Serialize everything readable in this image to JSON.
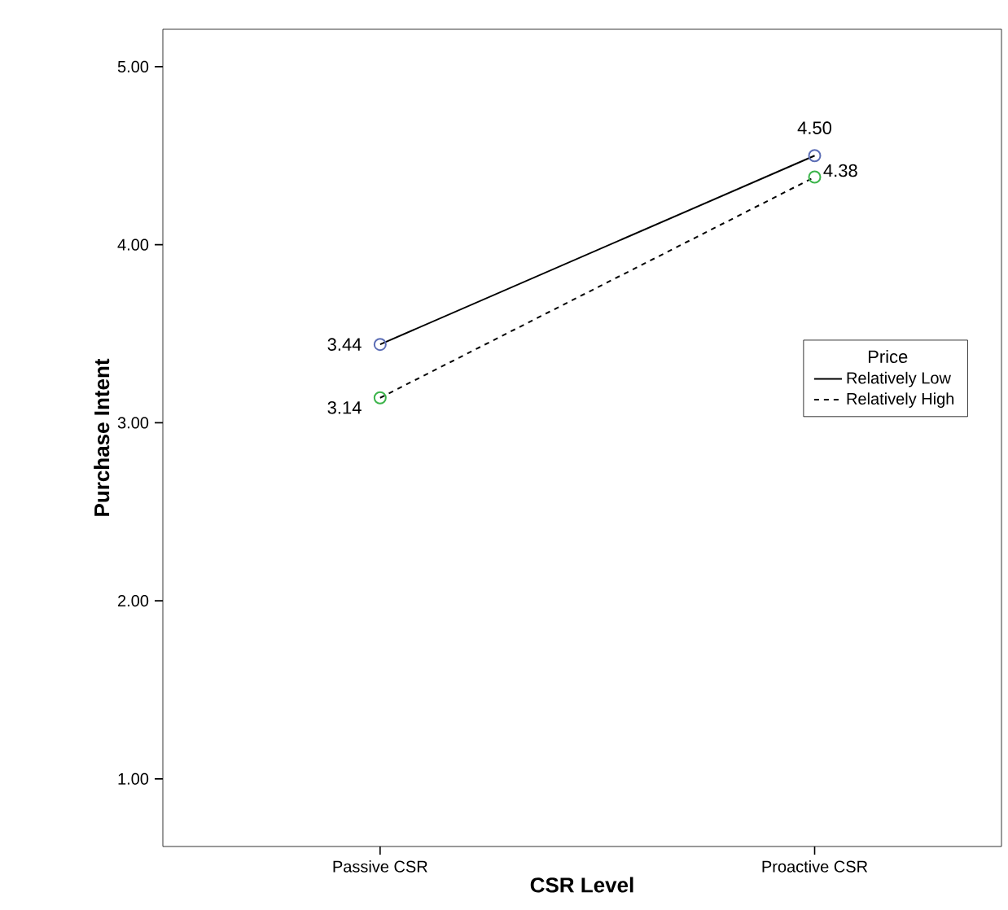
{
  "chart_data": {
    "type": "line",
    "xlabel": "CSR Level",
    "ylabel": "Purchase Intent",
    "legend_title": "Price",
    "categories": [
      "Passive CSR",
      "Proactive CSR"
    ],
    "series": [
      {
        "name": "Relatively Low",
        "color": "#5b6db5",
        "values": [
          3.44,
          4.5
        ],
        "value_labels": [
          "3.44",
          "4.50"
        ],
        "line_style": "solid"
      },
      {
        "name": "Relatively High",
        "color": "#3cb44b",
        "values": [
          3.14,
          4.38
        ],
        "value_labels": [
          "3.14",
          "4.38"
        ],
        "line_style": "dashed"
      }
    ],
    "ylim": [
      0.62,
      5.21
    ],
    "yticks": [
      {
        "value": 1,
        "label": "1.00"
      },
      {
        "value": 2,
        "label": "2.00"
      },
      {
        "value": 3,
        "label": "3.00"
      },
      {
        "value": 4,
        "label": "4.00"
      },
      {
        "value": 5,
        "label": "5.00"
      }
    ],
    "legend": "right",
    "marker": "circle",
    "grid": false
  }
}
